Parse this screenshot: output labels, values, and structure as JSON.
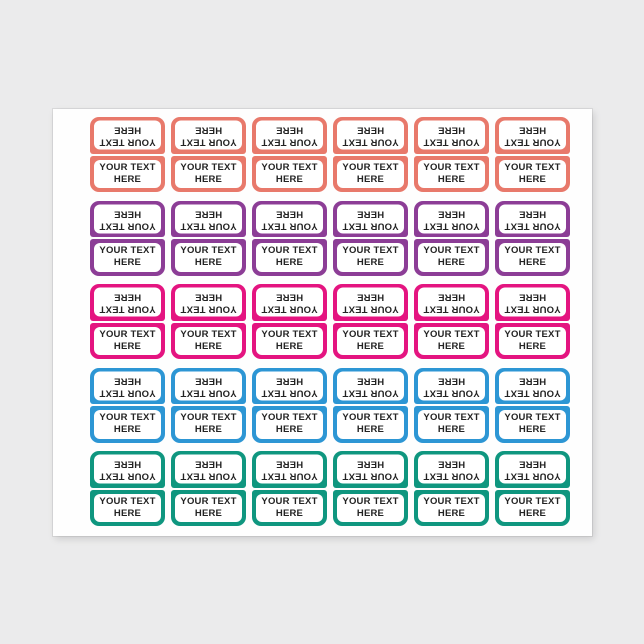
{
  "page": {
    "background_color": "#ebebec"
  },
  "sheet": {
    "background_color": "#fefefe",
    "cell_background_color": "#ffffff"
  },
  "label_text": {
    "line1": "YOUR TEXT",
    "line2": "HERE"
  },
  "text_color": "#232323",
  "grid": {
    "columns": 6,
    "rows": [
      {
        "color_name": "coral",
        "border_color": "#e8796b"
      },
      {
        "color_name": "purple",
        "border_color": "#8c3d96"
      },
      {
        "color_name": "magenta",
        "border_color": "#e41480"
      },
      {
        "color_name": "blue",
        "border_color": "#2d96d4"
      },
      {
        "color_name": "teal",
        "border_color": "#0f967f"
      }
    ]
  }
}
